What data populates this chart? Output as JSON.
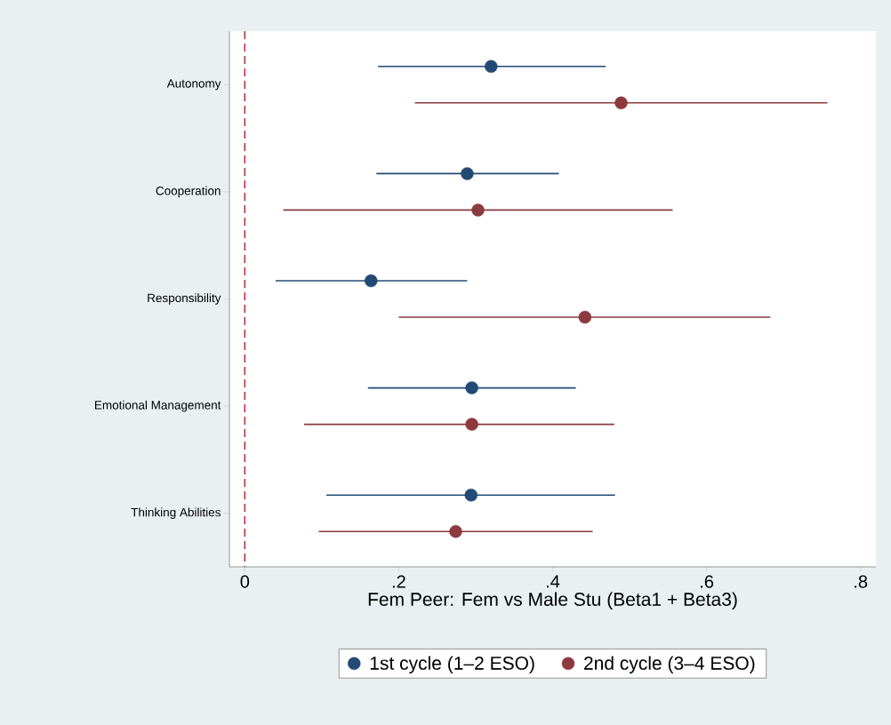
{
  "chart_data": {
    "type": "scatter",
    "orientation": "horizontal",
    "xlabel": "Fem Peer: Fem vs Male Stu (Beta1 + Beta3)",
    "categories": [
      "Autonomy",
      "Cooperation",
      "Responsibility",
      "Emotional Management",
      "Thinking Abilities"
    ],
    "xlim": [
      -0.02,
      0.82
    ],
    "xticks": [
      0,
      {
        "value": 0.2,
        "label": ".2"
      },
      {
        "value": 0.4,
        "label": ".4"
      },
      {
        "value": 0.6,
        "label": ".6"
      },
      {
        "value": 0.8,
        "label": ".8"
      }
    ],
    "legend": "bottom",
    "grid": false,
    "ref_lines": [
      {
        "axis": "x",
        "value": 0,
        "color": "#c0303a",
        "line_style": "dashed"
      }
    ],
    "series": [
      {
        "name": "1st cycle (1–2 ESO)",
        "color": "#234a75",
        "values": [
          0.32,
          0.289,
          0.164,
          0.295,
          0.294
        ],
        "errors": [
          [
            0.173,
            0.469
          ],
          [
            0.171,
            0.408
          ],
          [
            0.04,
            0.289
          ],
          [
            0.16,
            0.43
          ],
          [
            0.106,
            0.481
          ]
        ]
      },
      {
        "name": "2nd cycle (3–4 ESO)",
        "color": "#8c3a3e",
        "values": [
          0.489,
          0.303,
          0.442,
          0.295,
          0.274
        ],
        "errors": [
          [
            0.221,
            0.757
          ],
          [
            0.05,
            0.556
          ],
          [
            0.2,
            0.683
          ],
          [
            0.077,
            0.48
          ],
          [
            0.096,
            0.452
          ]
        ]
      }
    ]
  }
}
